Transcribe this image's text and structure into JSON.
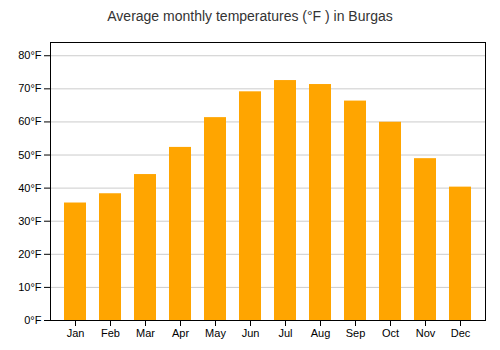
{
  "chart_data": {
    "type": "bar",
    "title": "Average monthly temperatures (°F ) in Burgas",
    "categories": [
      "Jan",
      "Feb",
      "Mar",
      "Apr",
      "May",
      "Jun",
      "Jul",
      "Aug",
      "Sep",
      "Oct",
      "Nov",
      "Dec"
    ],
    "values": [
      35.5,
      38.3,
      44.1,
      52.3,
      61.3,
      69.1,
      72.5,
      71.3,
      66.3,
      59.9,
      48.9,
      40.3
    ],
    "color": "#FFA500",
    "ylim": [
      0,
      84
    ],
    "yticks": [
      {
        "value": 0,
        "label": "0°F"
      },
      {
        "value": 10,
        "label": "10°F"
      },
      {
        "value": 20,
        "label": "20°F"
      },
      {
        "value": 30,
        "label": "30°F"
      },
      {
        "value": 40,
        "label": "40°F"
      },
      {
        "value": 50,
        "label": "50°F"
      },
      {
        "value": 60,
        "label": "60°F"
      },
      {
        "value": 70,
        "label": "70°F"
      },
      {
        "value": 80,
        "label": "80°F"
      }
    ],
    "grid": true
  }
}
